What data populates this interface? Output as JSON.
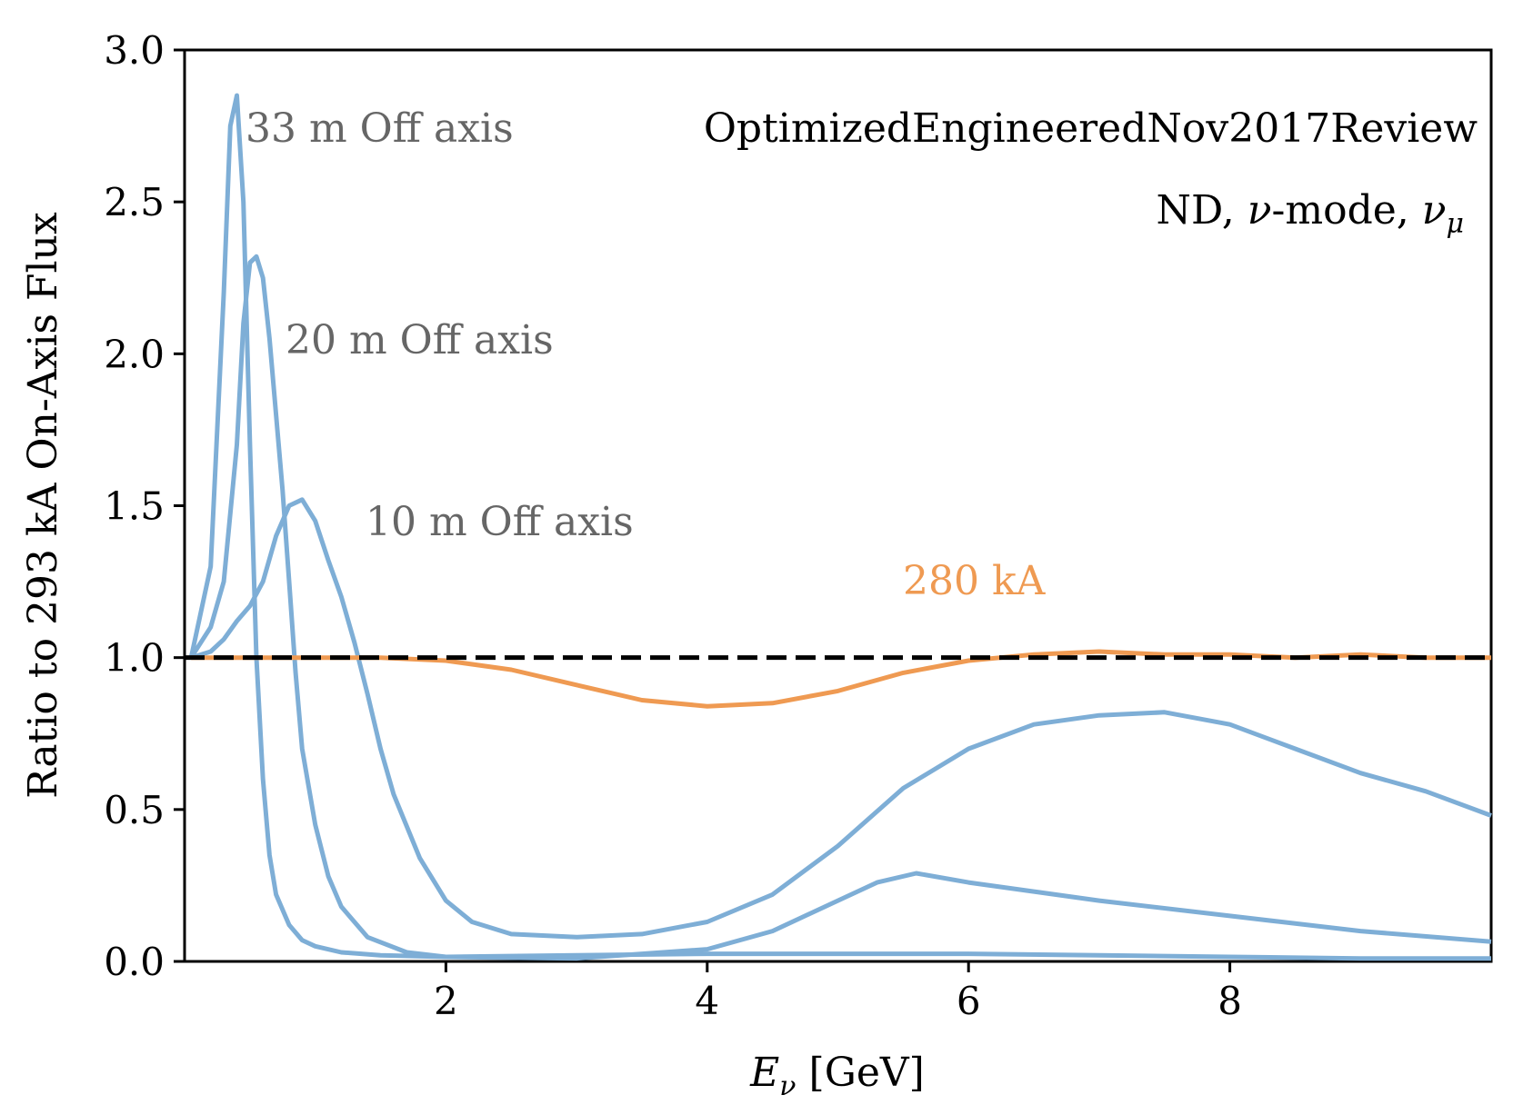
{
  "chart_data": {
    "type": "line",
    "title": "",
    "xlabel": "E_ν [GeV]",
    "xlabel_main": "E",
    "xlabel_sub": "ν",
    "xlabel_unit": " [GeV]",
    "ylabel": "Ratio to 293 kA On-Axis Flux",
    "xlim": [
      0,
      10
    ],
    "ylim": [
      0,
      3.0
    ],
    "x_ticks": [
      2,
      4,
      6,
      8
    ],
    "x_tick_labels": [
      "2",
      "4",
      "6",
      "8"
    ],
    "y_ticks": [
      0,
      0.5,
      1.0,
      1.5,
      2.0,
      2.5,
      3.0
    ],
    "y_tick_labels": [
      "0.0",
      "0.5",
      "1.0",
      "1.5",
      "2.0",
      "2.5",
      "3.0"
    ],
    "grid": false,
    "annotations": {
      "config": "OptimizedEngineeredNov2017Review",
      "mode_prefix": "ND, ",
      "mode_nu": "ν",
      "mode_mid": "-mode, ",
      "mode_nu2": "ν",
      "mode_sub": "μ"
    },
    "reference_line": {
      "y": 1.0,
      "style": "dashed",
      "color": "#000000"
    },
    "series": [
      {
        "name": "33 m Off axis",
        "label": "33 m Off axis",
        "color": "#7eaed6",
        "x": [
          0.05,
          0.2,
          0.3,
          0.35,
          0.4,
          0.45,
          0.5,
          0.55,
          0.6,
          0.65,
          0.7,
          0.8,
          0.9,
          1.0,
          1.2,
          1.5,
          2,
          3,
          4,
          5,
          6,
          7,
          8,
          9,
          10
        ],
        "y": [
          1.0,
          1.3,
          2.2,
          2.75,
          2.85,
          2.5,
          1.7,
          1.0,
          0.6,
          0.35,
          0.22,
          0.12,
          0.07,
          0.05,
          0.03,
          0.02,
          0.015,
          0.02,
          0.025,
          0.025,
          0.025,
          0.02,
          0.015,
          0.01,
          0.01
        ]
      },
      {
        "name": "20 m Off axis",
        "label": "20 m Off axis",
        "color": "#7eaed6",
        "x": [
          0.05,
          0.2,
          0.3,
          0.4,
          0.45,
          0.5,
          0.55,
          0.6,
          0.65,
          0.7,
          0.75,
          0.8,
          0.85,
          0.9,
          1.0,
          1.1,
          1.2,
          1.4,
          1.7,
          2,
          3,
          4,
          4.5,
          5,
          5.3,
          5.6,
          6,
          6.5,
          7,
          8,
          9,
          10
        ],
        "y": [
          1.0,
          1.1,
          1.25,
          1.7,
          2.1,
          2.3,
          2.32,
          2.25,
          2.05,
          1.8,
          1.55,
          1.25,
          0.95,
          0.7,
          0.45,
          0.28,
          0.18,
          0.08,
          0.03,
          0.015,
          0.01,
          0.04,
          0.1,
          0.2,
          0.26,
          0.29,
          0.26,
          0.23,
          0.2,
          0.15,
          0.1,
          0.065
        ]
      },
      {
        "name": "10 m Off axis",
        "label": "10 m Off axis",
        "color": "#7eaed6",
        "x": [
          0.05,
          0.2,
          0.3,
          0.4,
          0.5,
          0.6,
          0.7,
          0.8,
          0.9,
          1.0,
          1.1,
          1.2,
          1.3,
          1.4,
          1.5,
          1.6,
          1.8,
          2.0,
          2.2,
          2.5,
          3.0,
          3.5,
          4.0,
          4.5,
          5.0,
          5.5,
          6.0,
          6.5,
          7.0,
          7.5,
          8.0,
          8.5,
          9.0,
          9.5,
          10.0
        ],
        "y": [
          1.0,
          1.02,
          1.06,
          1.12,
          1.17,
          1.25,
          1.4,
          1.5,
          1.52,
          1.45,
          1.32,
          1.2,
          1.05,
          0.88,
          0.7,
          0.55,
          0.34,
          0.2,
          0.13,
          0.09,
          0.08,
          0.09,
          0.13,
          0.22,
          0.38,
          0.57,
          0.7,
          0.78,
          0.81,
          0.82,
          0.78,
          0.7,
          0.62,
          0.56,
          0.48
        ]
      },
      {
        "name": "280 kA",
        "label": "280 kA",
        "color": "#ef9a52",
        "x": [
          0.05,
          0.5,
          1.0,
          1.5,
          2.0,
          2.5,
          3.0,
          3.5,
          4.0,
          4.5,
          5.0,
          5.5,
          6.0,
          6.5,
          7.0,
          7.5,
          8.0,
          8.5,
          9.0,
          9.5,
          10.0
        ],
        "y": [
          1.0,
          1.0,
          1.0,
          1.0,
          0.99,
          0.96,
          0.91,
          0.86,
          0.84,
          0.85,
          0.89,
          0.95,
          0.99,
          1.01,
          1.02,
          1.01,
          1.01,
          1.0,
          1.01,
          1.0,
          1.0
        ]
      }
    ]
  }
}
